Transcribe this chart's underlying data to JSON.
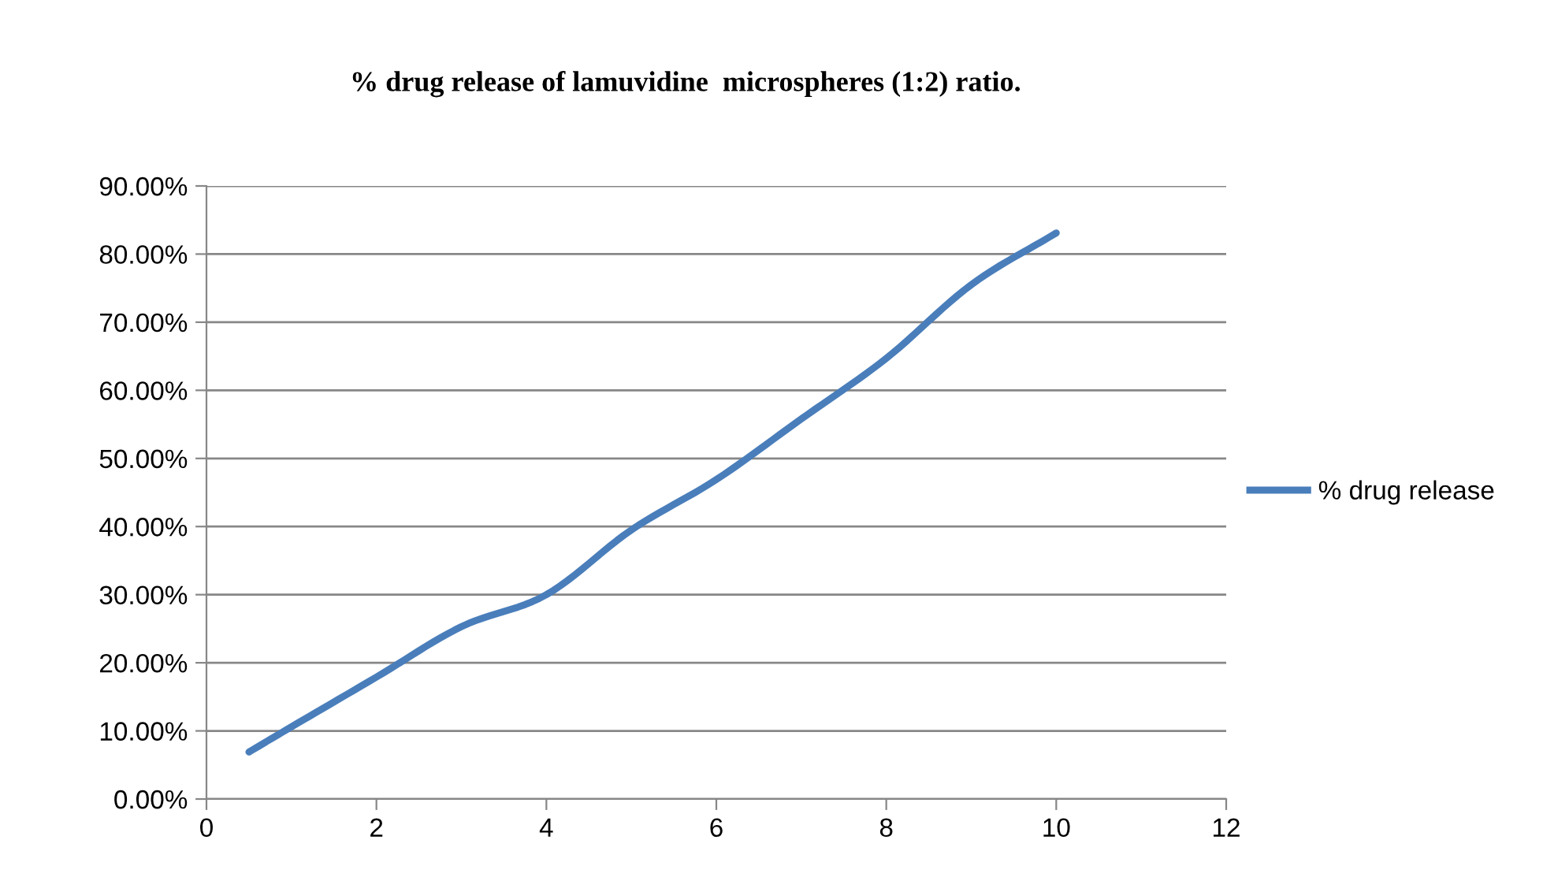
{
  "chart_data": {
    "type": "line",
    "title": "% drug release of lamuvidine  microspheres (1:2) ratio.",
    "x": [
      0.5,
      1,
      2,
      3,
      4,
      5,
      6,
      7,
      8,
      9,
      10
    ],
    "series": [
      {
        "name": "% drug release",
        "color": "#4a7ebb",
        "values": [
          6.9,
          10.6,
          17.9,
          25.3,
          30.0,
          39.5,
          46.9,
          55.8,
          64.7,
          75.5,
          83.1
        ]
      }
    ],
    "xlim": [
      0,
      12
    ],
    "xticks": [
      0,
      2,
      4,
      6,
      8,
      10,
      12
    ],
    "ylim": [
      0,
      90
    ],
    "yticks": [
      {
        "value": 0,
        "label": "0.00%"
      },
      {
        "value": 10,
        "label": "10.00%"
      },
      {
        "value": 20,
        "label": "20.00%"
      },
      {
        "value": 30,
        "label": "30.00%"
      },
      {
        "value": 40,
        "label": "40.00%"
      },
      {
        "value": 50,
        "label": "50.00%"
      },
      {
        "value": 60,
        "label": "60.00%"
      },
      {
        "value": 70,
        "label": "70.00%"
      },
      {
        "value": 80,
        "label": "80.00%"
      },
      {
        "value": 90,
        "label": "90.00%"
      }
    ],
    "grid": "y",
    "legend": "right",
    "marker": "none",
    "line_style": "solid"
  }
}
